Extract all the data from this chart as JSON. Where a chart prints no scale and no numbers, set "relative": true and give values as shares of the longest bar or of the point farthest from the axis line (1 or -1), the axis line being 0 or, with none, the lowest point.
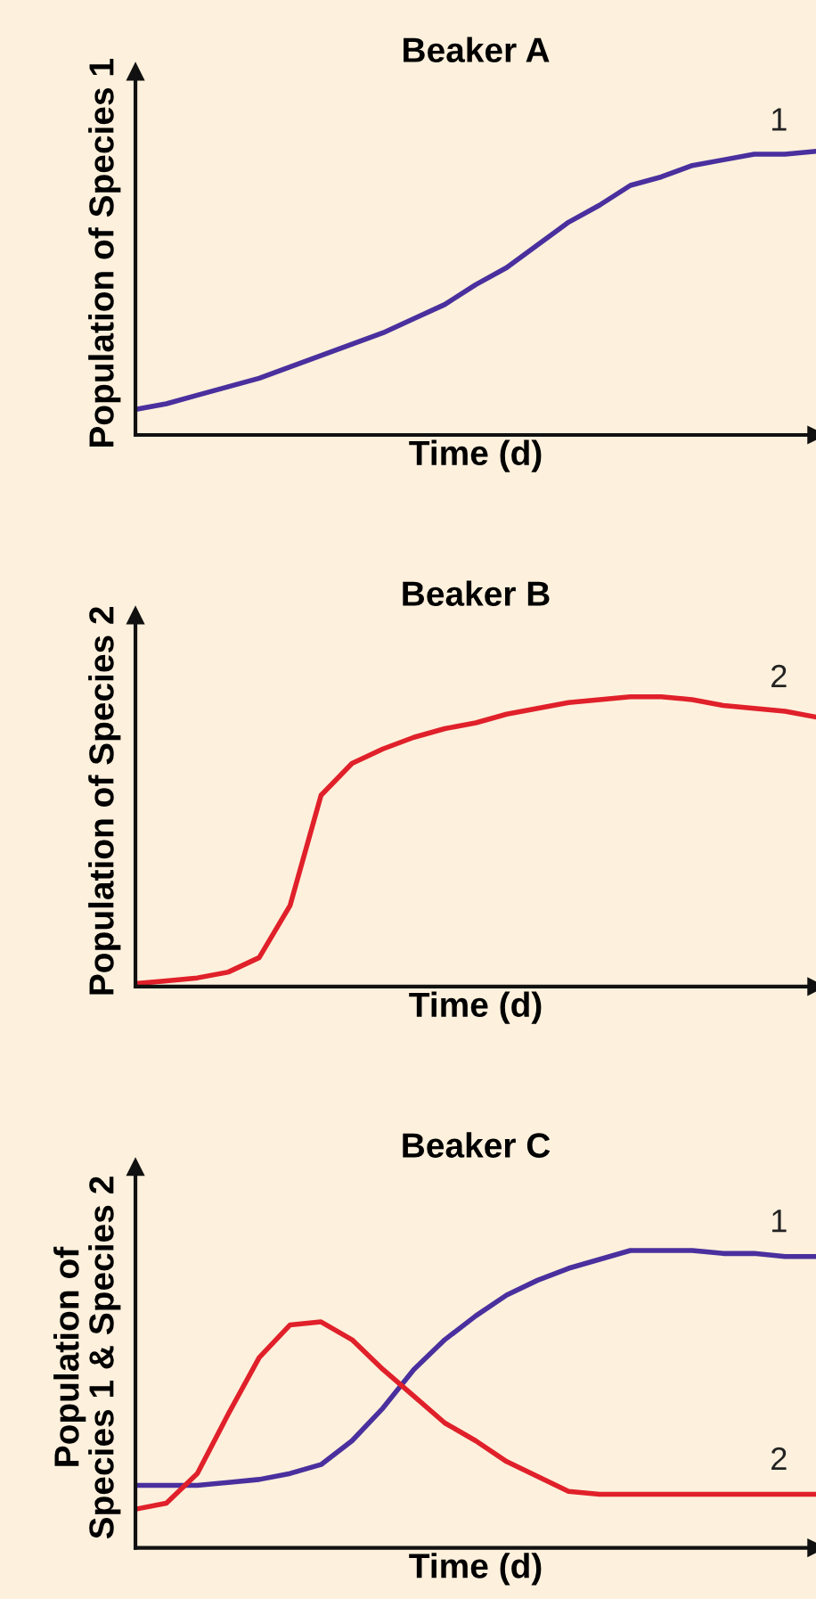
{
  "chart_data": [
    {
      "type": "line",
      "title": "Beaker A",
      "xlabel": "Time (d)",
      "ylabel": "Population of Species 1",
      "relative": true,
      "categories": [
        null,
        null,
        null,
        null,
        null,
        null,
        null,
        null,
        null,
        null,
        null,
        null,
        null,
        null,
        null,
        null,
        null,
        null,
        null,
        null,
        null,
        null,
        null
      ],
      "series": [
        {
          "name": "1",
          "color": "#4a2f9e",
          "values": [
            0.09,
            0.11,
            0.14,
            0.17,
            0.2,
            0.24,
            0.28,
            0.32,
            0.36,
            0.41,
            0.46,
            0.53,
            0.59,
            0.67,
            0.75,
            0.81,
            0.88,
            0.91,
            0.95,
            0.97,
            0.99,
            0.99,
            1
          ]
        }
      ],
      "marker": "none",
      "line_style": "solid"
    },
    {
      "type": "line",
      "title": "Beaker B",
      "xlabel": "Time (d)",
      "ylabel": "Population of Species 2",
      "relative": true,
      "categories": [
        null,
        null,
        null,
        null,
        null,
        null,
        null,
        null,
        null,
        null,
        null,
        null,
        null,
        null,
        null,
        null,
        null,
        null,
        null,
        null,
        null,
        null,
        null
      ],
      "series": [
        {
          "name": "2",
          "color": "#e0202a",
          "values": [
            0.01,
            0.02,
            0.03,
            0.05,
            0.1,
            0.28,
            0.66,
            0.77,
            0.82,
            0.86,
            0.89,
            0.91,
            0.94,
            0.96,
            0.98,
            0.99,
            1,
            1,
            0.99,
            0.97,
            0.96,
            0.95,
            0.93
          ]
        }
      ],
      "marker": "none",
      "line_style": "solid"
    },
    {
      "type": "line",
      "title": "Beaker C",
      "xlabel": "Time (d)",
      "ylabel": "Population of\nSpecies 1 & Species 2",
      "relative": true,
      "categories": [
        null,
        null,
        null,
        null,
        null,
        null,
        null,
        null,
        null,
        null,
        null,
        null,
        null,
        null,
        null,
        null,
        null,
        null,
        null,
        null,
        null,
        null,
        null
      ],
      "series": [
        {
          "name": "1",
          "color": "#4a2f9e",
          "values": [
            0.21,
            0.21,
            0.21,
            0.22,
            0.23,
            0.25,
            0.28,
            0.36,
            0.47,
            0.6,
            0.7,
            0.78,
            0.85,
            0.9,
            0.94,
            0.97,
            1,
            1,
            1,
            0.99,
            0.99,
            0.98,
            0.98
          ]
        },
        {
          "name": "2",
          "color": "#e0202a",
          "values": [
            0.13,
            0.15,
            0.25,
            0.45,
            0.64,
            0.75,
            0.76,
            0.7,
            0.6,
            0.51,
            0.42,
            0.36,
            0.29,
            0.24,
            0.19,
            0.18,
            0.18,
            0.18,
            0.18,
            0.18,
            0.18,
            0.18,
            0.18
          ]
        }
      ],
      "marker": "none",
      "line_style": "solid"
    }
  ]
}
